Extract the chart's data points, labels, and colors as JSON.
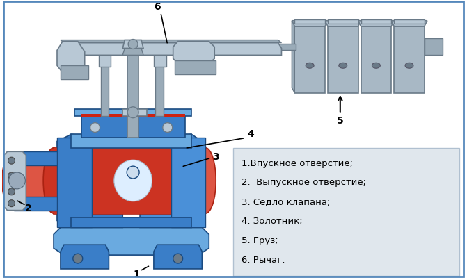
{
  "fig_width": 6.71,
  "fig_height": 4.03,
  "dpi": 100,
  "bg_color": "#ffffff",
  "border_color": "#5588bb",
  "blue_body": "#3a7ec8",
  "blue_dark": "#1a4a80",
  "blue_light": "#6aaae0",
  "blue_mid": "#4a90d8",
  "red_body": "#cc3322",
  "red_light": "#dd5544",
  "gray_lever": "#9aabb8",
  "gray_dark": "#6a7a88",
  "gray_light": "#b8c8d5",
  "gray_weight": "#a8b8c5",
  "white_hl": "#e8f0f8",
  "legend_bg": "#dde5ec",
  "text_color": "#000000",
  "legend_items": [
    "1.Впускное отверстие;",
    "2.  Выпускное отверстие;",
    "3. Седло клапана;",
    "4. Золотник;",
    "5. Груз;",
    "6. Рычаг."
  ]
}
